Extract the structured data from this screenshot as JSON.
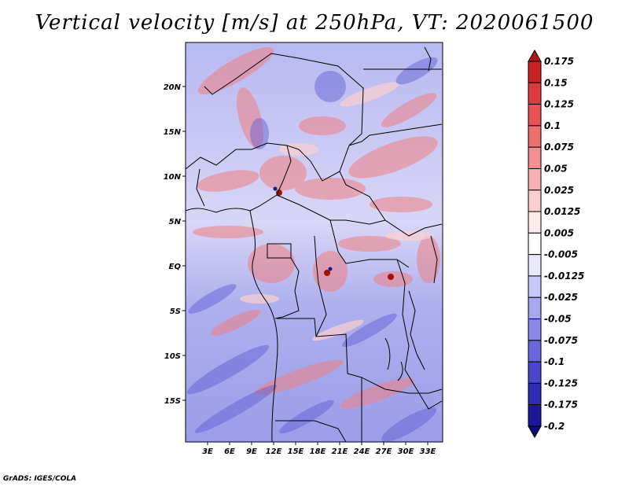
{
  "title": "Vertical velocity [m/s] at 250hPa, VT: 2020061500",
  "footer": "GrADS: IGES/COLA",
  "map": {
    "region": "Central Africa",
    "lon_labels": [
      "3E",
      "6E",
      "9E",
      "12E",
      "15E",
      "18E",
      "21E",
      "24E",
      "27E",
      "30E",
      "33E"
    ],
    "lat_labels": [
      "20N",
      "15N",
      "10N",
      "5N",
      "EQ",
      "5S",
      "10S",
      "15S"
    ]
  },
  "colorbar": {
    "levels": [
      "0.175",
      "0.15",
      "0.125",
      "0.1",
      "0.075",
      "0.05",
      "0.025",
      "0.0125",
      "0.005",
      "-0.005",
      "-0.0125",
      "-0.025",
      "-0.05",
      "-0.075",
      "-0.1",
      "-0.125",
      "-0.175",
      "-0.2"
    ],
    "colors": [
      "#b01818",
      "#c82424",
      "#dc3c3c",
      "#e85454",
      "#f07070",
      "#f49090",
      "#f8b0b0",
      "#fbcfcf",
      "#fdeaea",
      "#ffffff",
      "#e8e8fc",
      "#c8c8f8",
      "#a8a8f0",
      "#8888e8",
      "#6868dc",
      "#4848cc",
      "#2c2cb4",
      "#181898",
      "#0c0c7c"
    ]
  }
}
